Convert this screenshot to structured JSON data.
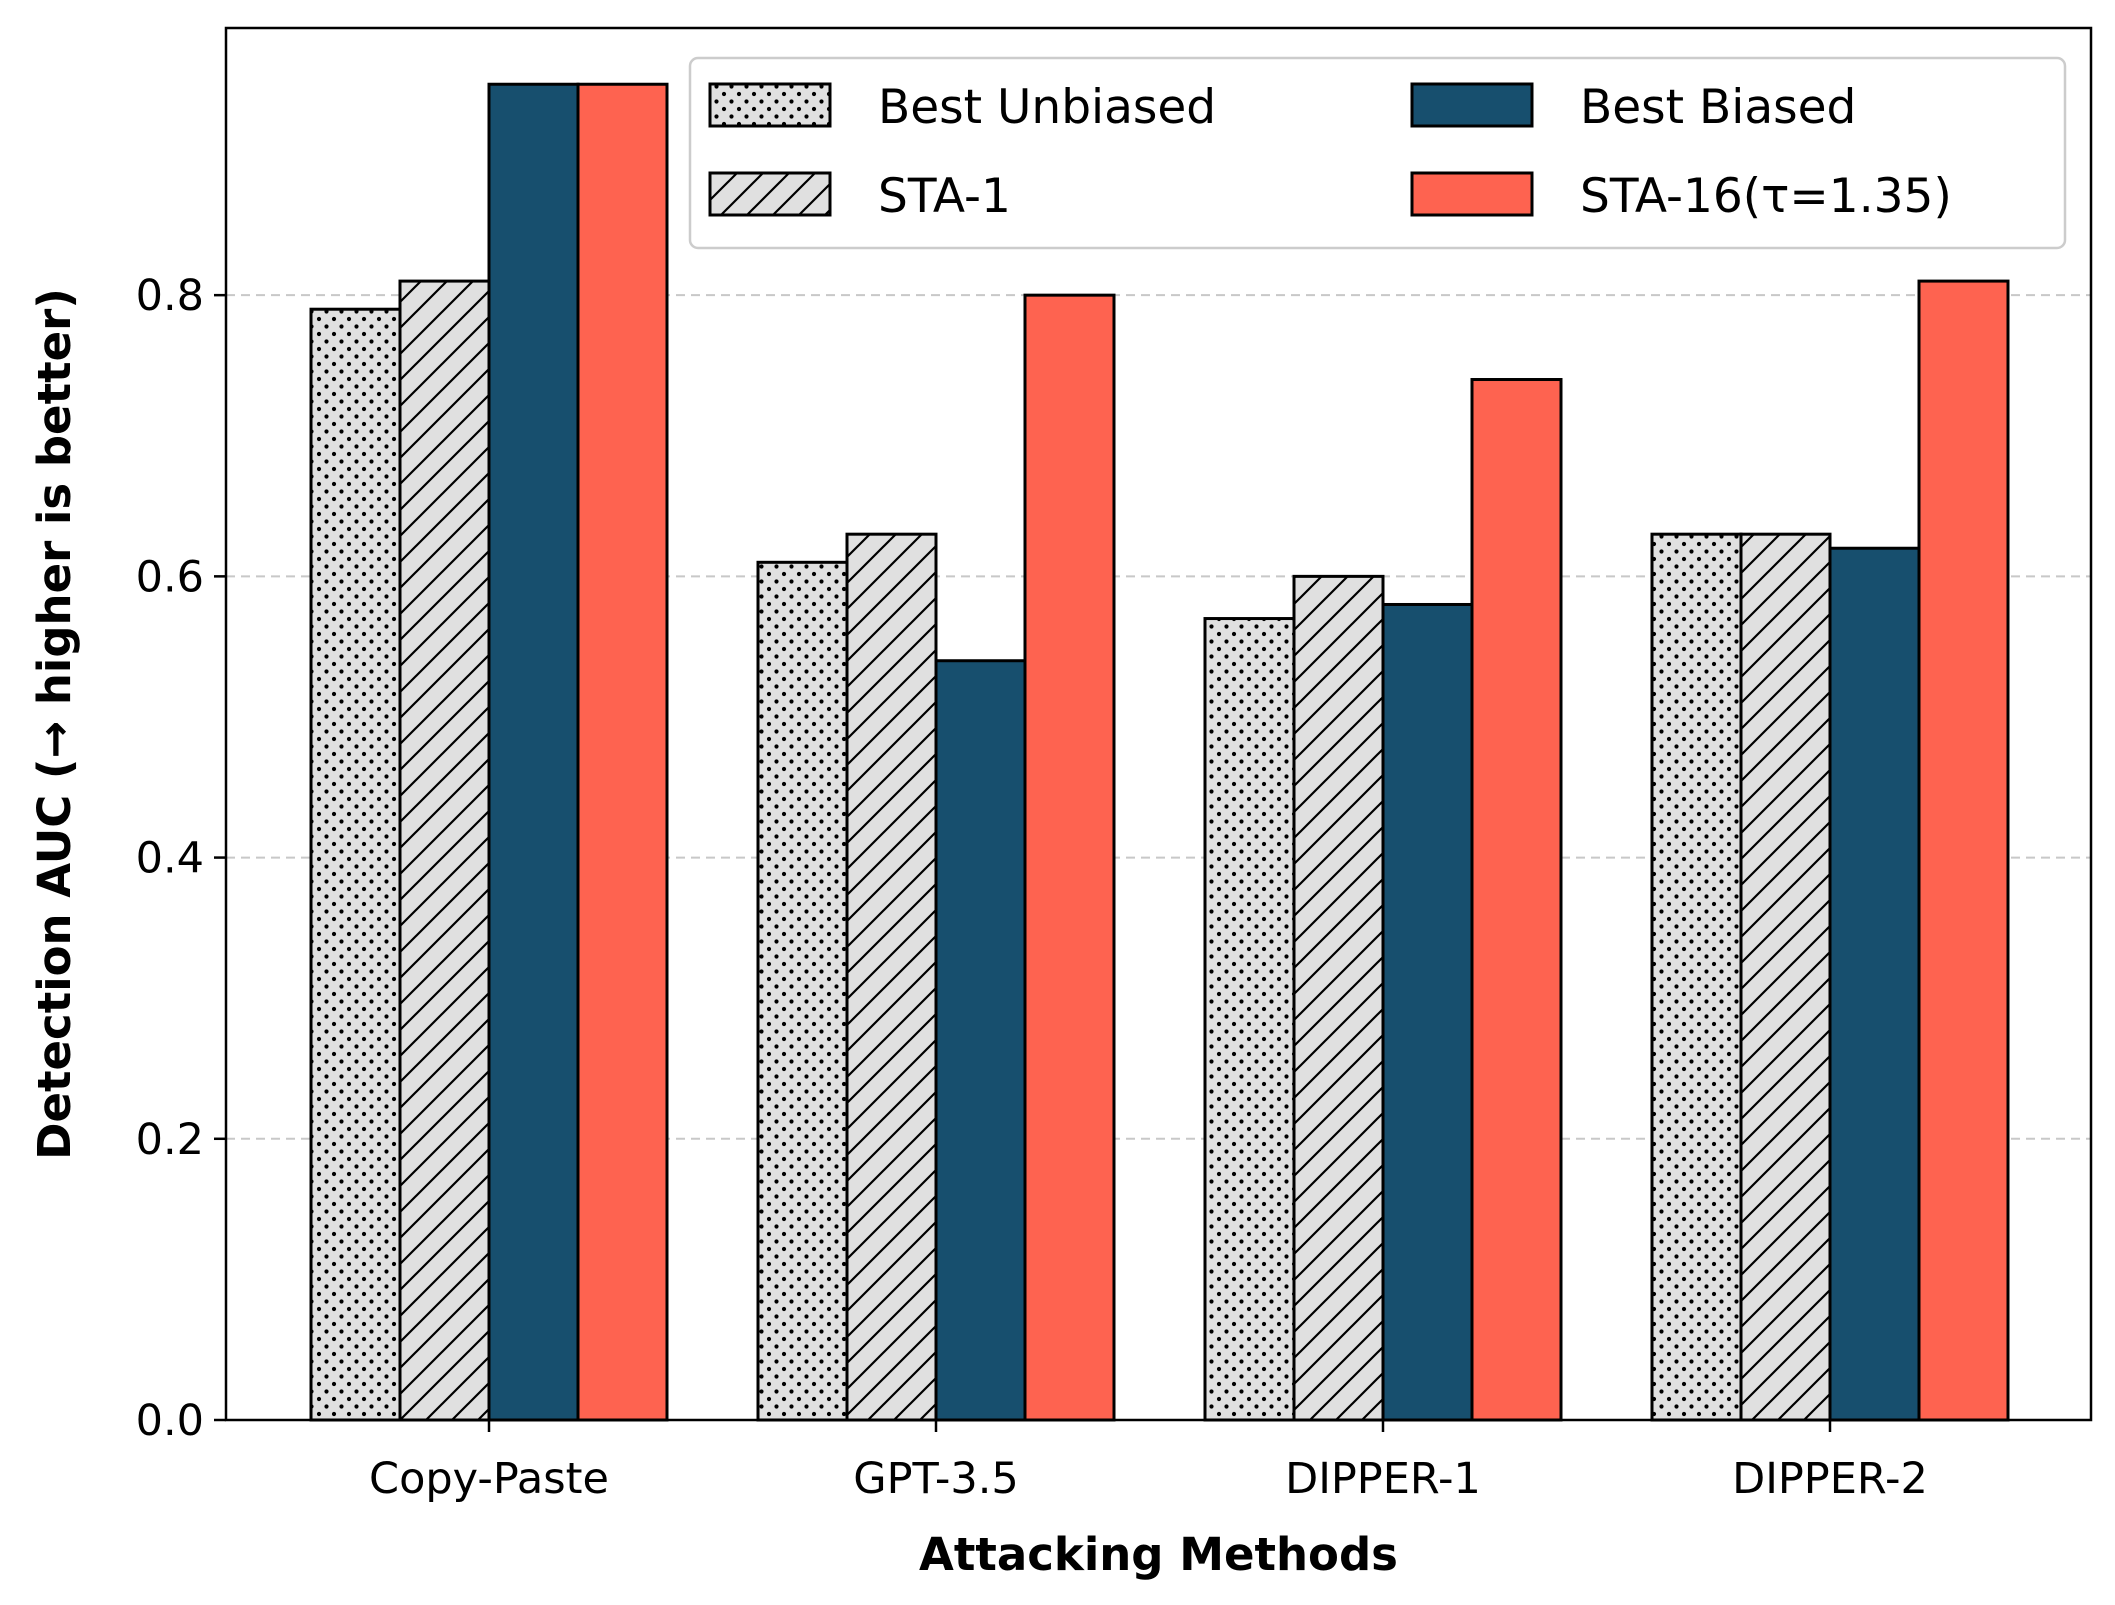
{
  "chart_data": {
    "type": "bar",
    "xlabel": "Attacking Methods",
    "ylabel": "Detection AUC (→ higher is better)",
    "categories": [
      "Copy-Paste",
      "GPT-3.5",
      "DIPPER-1",
      "DIPPER-2"
    ],
    "ylim": [
      0,
      0.99
    ],
    "yticks": [
      "0.0",
      "0.2",
      "0.4",
      "0.6",
      "0.8"
    ],
    "ytick_values": [
      0,
      0.2,
      0.4,
      0.6,
      0.8
    ],
    "grid": "horizontal dashed",
    "legend_position": "top-right",
    "series": [
      {
        "name": "Best Unbiased",
        "color": "#e0e0e0",
        "pattern": "dots",
        "values": [
          0.79,
          0.61,
          0.57,
          0.63
        ]
      },
      {
        "name": "STA-1",
        "color": "#e0e0e0",
        "pattern": "hatch",
        "values": [
          0.81,
          0.63,
          0.6,
          0.63
        ]
      },
      {
        "name": "Best Biased",
        "color": "#174f6e",
        "pattern": "solid",
        "values": [
          0.95,
          0.54,
          0.58,
          0.62
        ]
      },
      {
        "name": "STA-16(τ=1.35)",
        "color": "#fe6350",
        "pattern": "solid",
        "values": [
          0.95,
          0.8,
          0.74,
          0.81
        ]
      }
    ]
  }
}
